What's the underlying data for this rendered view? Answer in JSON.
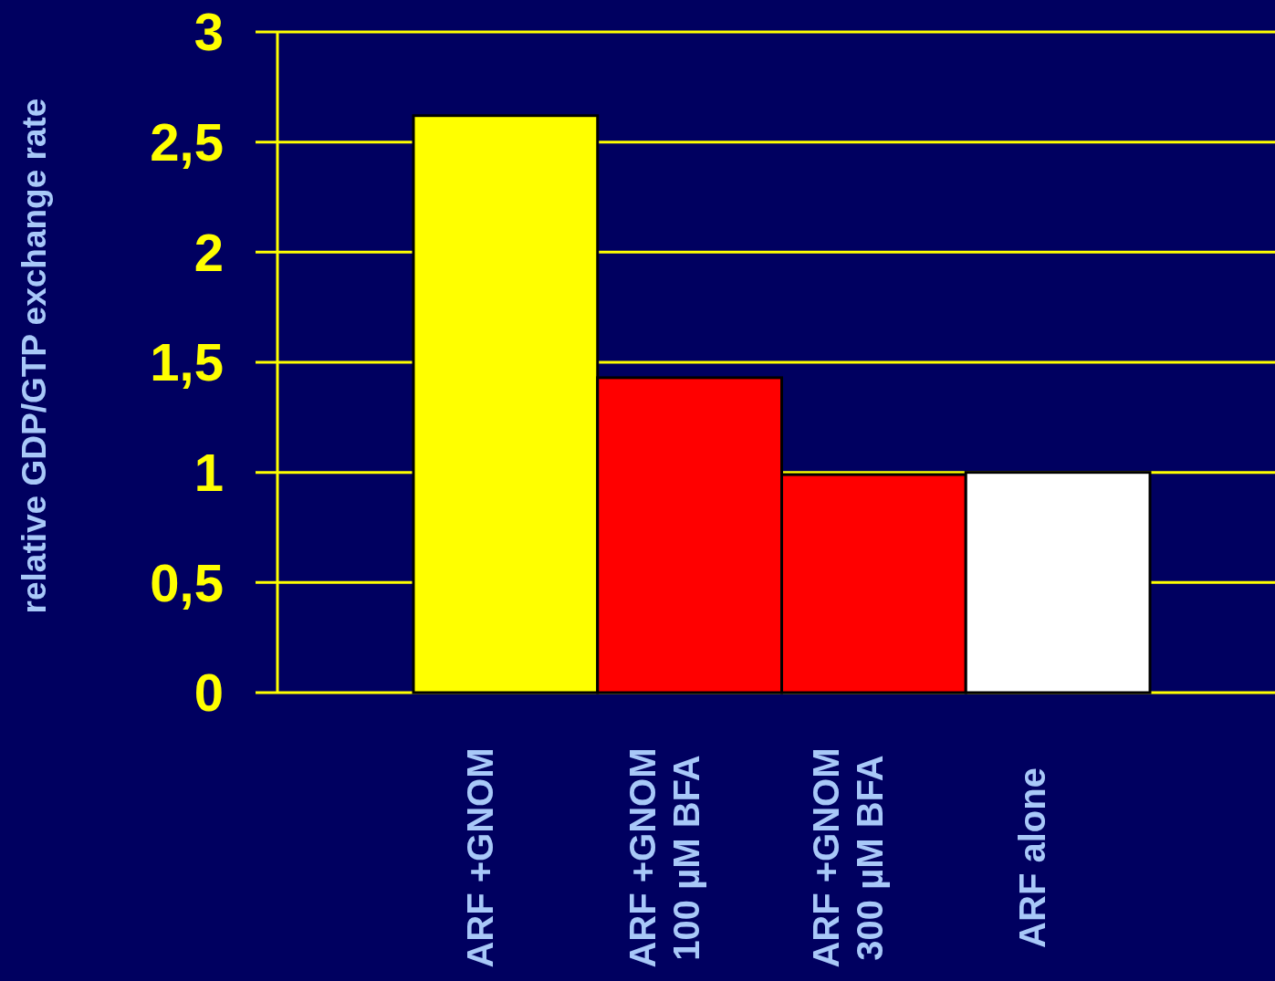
{
  "chart_data": {
    "type": "bar",
    "ylabel": "relative GDP/GTP exchange rate",
    "categories": [
      "ARF +GNOM",
      "ARF +GNOM\n100 µM BFA",
      "ARF +GNOM\n300 µM BFA",
      "ARF alone"
    ],
    "values": [
      2.62,
      1.43,
      0.99,
      1.0
    ],
    "colors": [
      "#ffff00",
      "#ff0000",
      "#ff0000",
      "#ffffff"
    ],
    "ylim": [
      0,
      3
    ],
    "yticks": [
      0,
      {
        "value": 0.5,
        "label": "0,5"
      },
      1,
      {
        "value": 1.5,
        "label": "1,5"
      },
      2,
      {
        "value": 2.5,
        "label": "2,5"
      },
      3
    ],
    "grid": "y"
  }
}
